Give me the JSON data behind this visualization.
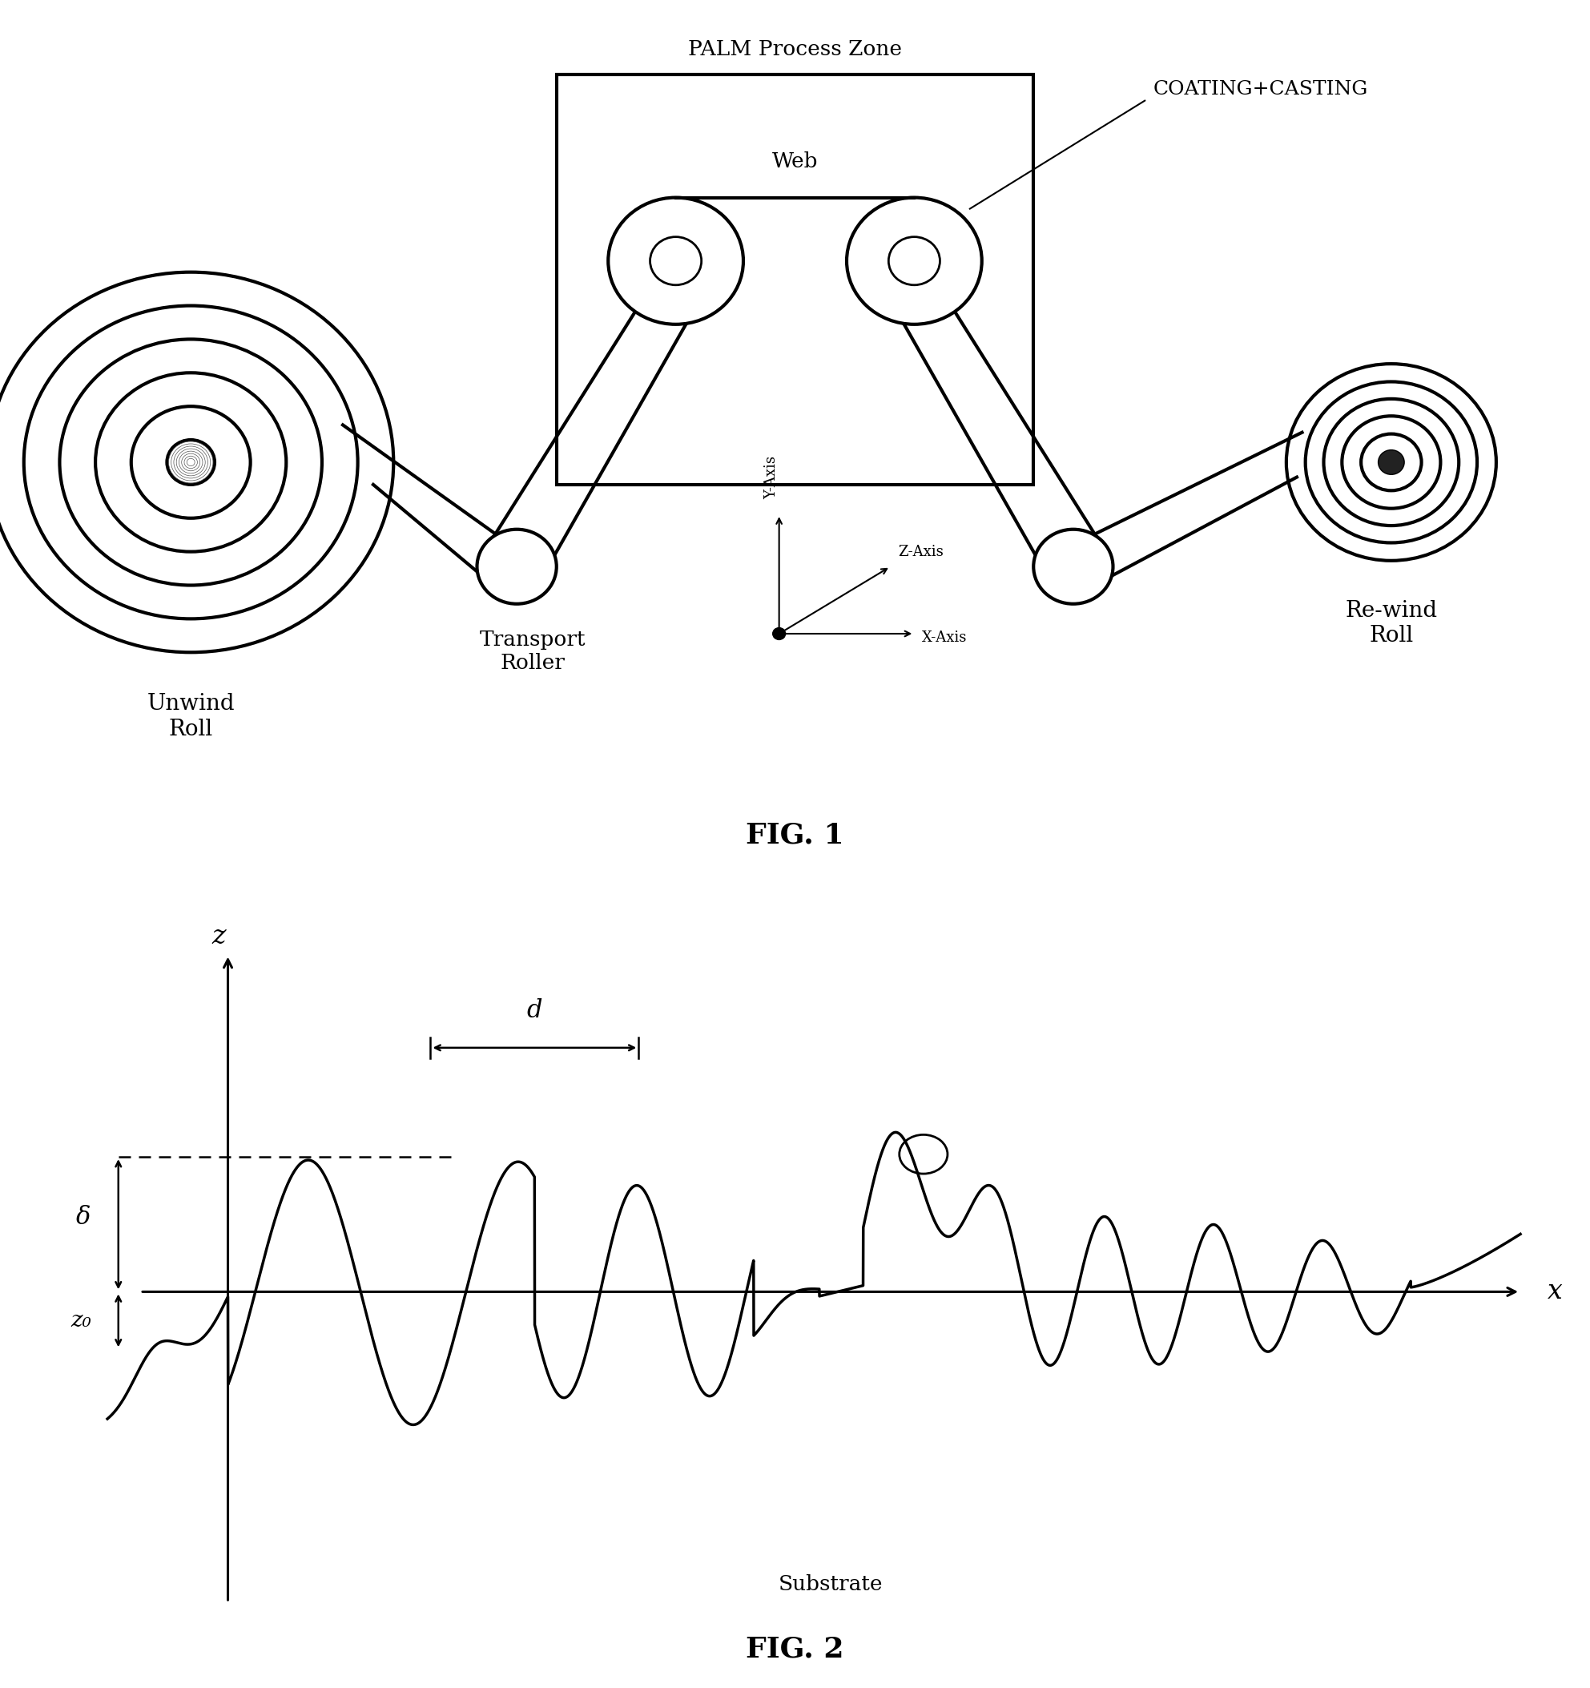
{
  "fig1_title": "FIG. 1",
  "fig2_title": "FIG. 2",
  "palm_zone_label": "PALM Process Zone",
  "web_label": "Web",
  "coating_label": "COATING+CASTING",
  "transport_roller_label": "Transport\nRoller",
  "unwind_roll_label": "Unwind\nRoll",
  "rewind_roll_label": "Re-wind\nRoll",
  "xaxis_label": "X-Axis",
  "yaxis_label": "Y-Axis",
  "zaxis_label": "Z-Axis",
  "substrate_label": "Substrate",
  "z_label": "z",
  "x_label": "x",
  "delta_label": "δ",
  "z0_label": "z₀",
  "d_label": "d",
  "bg_color": "#ffffff",
  "line_color": "#000000",
  "lw_thick": 3.0,
  "lw_med": 2.0,
  "lw_thin": 1.5
}
